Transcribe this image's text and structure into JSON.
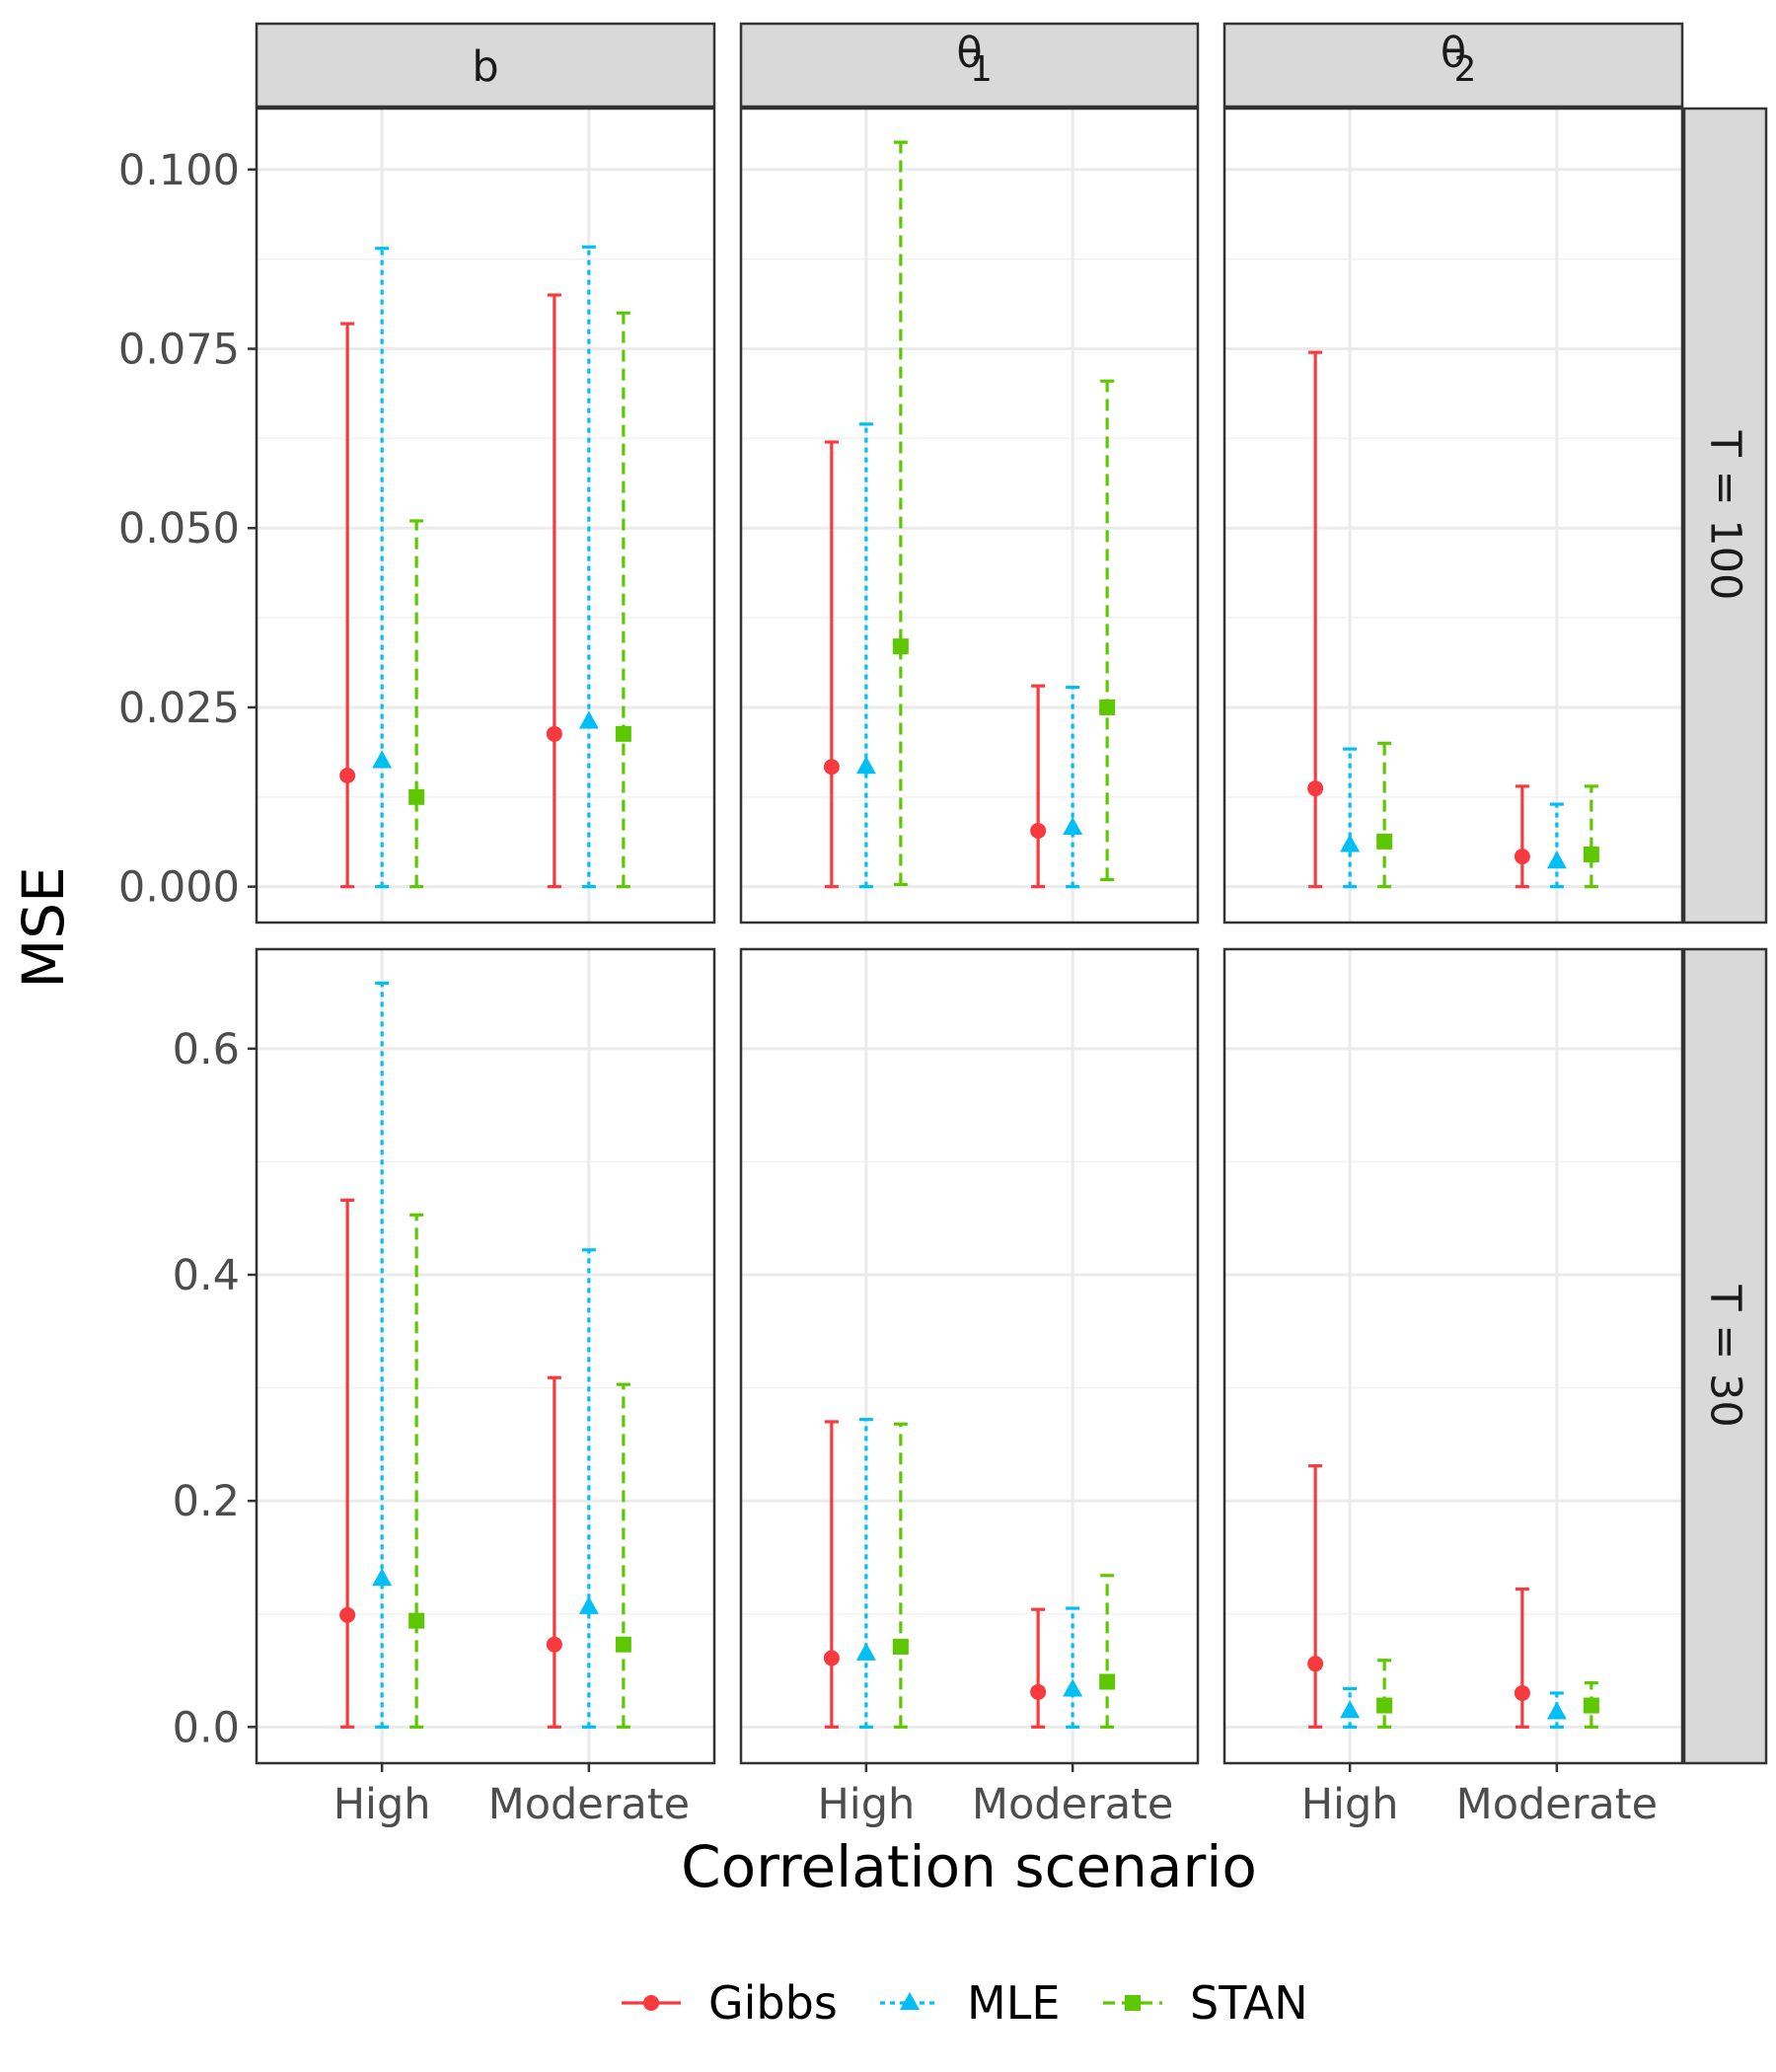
{
  "chart_data": {
    "type": "errorbar",
    "xlabel": "Correlation scenario",
    "ylabel": "MSE",
    "categories": [
      "High",
      "Moderate"
    ],
    "columns": [
      {
        "id": "b",
        "label": "b",
        "subscript": ""
      },
      {
        "id": "theta1",
        "label": "θ",
        "subscript": "1"
      },
      {
        "id": "theta2",
        "label": "θ",
        "subscript": "2"
      }
    ],
    "rows": [
      {
        "id": "T100",
        "label": "T = 100",
        "ylim": [
          -0.005,
          0.1085
        ],
        "major_ticks": [
          0.0,
          0.025,
          0.05,
          0.075,
          0.1
        ],
        "tick_labels": [
          "0.000",
          "0.025",
          "0.050",
          "0.075",
          "0.100"
        ],
        "minor_ticks": [
          0.0125,
          0.0375,
          0.0625,
          0.0875
        ]
      },
      {
        "id": "T30",
        "label": "T = 30",
        "ylim": [
          -0.032,
          0.688
        ],
        "major_ticks": [
          0.0,
          0.2,
          0.4,
          0.6
        ],
        "tick_labels": [
          "0.0",
          "0.2",
          "0.4",
          "0.6"
        ],
        "minor_ticks": [
          0.1,
          0.3,
          0.5
        ]
      }
    ],
    "series": [
      {
        "name": "Gibbs",
        "color": "#f8393e",
        "marker": "circle",
        "linestyle": "solid"
      },
      {
        "name": "MLE",
        "color": "#00bff4",
        "marker": "triangle",
        "linestyle": "dotted"
      },
      {
        "name": "STAN",
        "color": "#5dc800",
        "marker": "square",
        "linestyle": "dashed"
      }
    ],
    "panels": [
      {
        "row": "T100",
        "col": "b",
        "values": {
          "Gibbs": [
            {
              "x": "High",
              "y": 0.0155,
              "ymin": 0.0,
              "ymax": 0.0785
            },
            {
              "x": "Moderate",
              "y": 0.0213,
              "ymin": 0.0,
              "ymax": 0.0825
            }
          ],
          "MLE": [
            {
              "x": "High",
              "y": 0.0175,
              "ymin": 0.0,
              "ymax": 0.089
            },
            {
              "x": "Moderate",
              "y": 0.023,
              "ymin": 0.0,
              "ymax": 0.0892
            }
          ],
          "STAN": [
            {
              "x": "High",
              "y": 0.0125,
              "ymin": 0.0,
              "ymax": 0.051
            },
            {
              "x": "Moderate",
              "y": 0.0213,
              "ymin": 0.0,
              "ymax": 0.08
            }
          ]
        }
      },
      {
        "row": "T100",
        "col": "theta1",
        "values": {
          "Gibbs": [
            {
              "x": "High",
              "y": 0.0167,
              "ymin": 0.0,
              "ymax": 0.062
            },
            {
              "x": "Moderate",
              "y": 0.0078,
              "ymin": 0.0,
              "ymax": 0.028
            }
          ],
          "MLE": [
            {
              "x": "High",
              "y": 0.0167,
              "ymin": 0.0,
              "ymax": 0.0645
            },
            {
              "x": "Moderate",
              "y": 0.0082,
              "ymin": 0.0,
              "ymax": 0.0278
            }
          ],
          "STAN": [
            {
              "x": "High",
              "y": 0.0335,
              "ymin": 0.0003,
              "ymax": 0.1038
            },
            {
              "x": "Moderate",
              "y": 0.025,
              "ymin": 0.001,
              "ymax": 0.0705
            }
          ]
        }
      },
      {
        "row": "T100",
        "col": "theta2",
        "values": {
          "Gibbs": [
            {
              "x": "High",
              "y": 0.0137,
              "ymin": 0.0,
              "ymax": 0.0745
            },
            {
              "x": "Moderate",
              "y": 0.0042,
              "ymin": 0.0,
              "ymax": 0.014
            }
          ],
          "MLE": [
            {
              "x": "High",
              "y": 0.0058,
              "ymin": 0.0,
              "ymax": 0.0192
            },
            {
              "x": "Moderate",
              "y": 0.0035,
              "ymin": 0.0,
              "ymax": 0.0115
            }
          ],
          "STAN": [
            {
              "x": "High",
              "y": 0.0063,
              "ymin": 0.0,
              "ymax": 0.02
            },
            {
              "x": "Moderate",
              "y": 0.0045,
              "ymin": 0.0,
              "ymax": 0.014
            }
          ]
        }
      },
      {
        "row": "T30",
        "col": "b",
        "values": {
          "Gibbs": [
            {
              "x": "High",
              "y": 0.099,
              "ymin": 0.0,
              "ymax": 0.466
            },
            {
              "x": "Moderate",
              "y": 0.073,
              "ymin": 0.0,
              "ymax": 0.309
            }
          ],
          "MLE": [
            {
              "x": "High",
              "y": 0.131,
              "ymin": 0.0,
              "ymax": 0.658
            },
            {
              "x": "Moderate",
              "y": 0.106,
              "ymin": 0.0,
              "ymax": 0.422
            }
          ],
          "STAN": [
            {
              "x": "High",
              "y": 0.094,
              "ymin": 0.0,
              "ymax": 0.453
            },
            {
              "x": "Moderate",
              "y": 0.073,
              "ymin": 0.0,
              "ymax": 0.303
            }
          ]
        }
      },
      {
        "row": "T30",
        "col": "theta1",
        "values": {
          "Gibbs": [
            {
              "x": "High",
              "y": 0.061,
              "ymin": 0.0,
              "ymax": 0.27
            },
            {
              "x": "Moderate",
              "y": 0.031,
              "ymin": 0.0,
              "ymax": 0.104
            }
          ],
          "MLE": [
            {
              "x": "High",
              "y": 0.065,
              "ymin": 0.0,
              "ymax": 0.272
            },
            {
              "x": "Moderate",
              "y": 0.033,
              "ymin": 0.0,
              "ymax": 0.105
            }
          ],
          "STAN": [
            {
              "x": "High",
              "y": 0.071,
              "ymin": 0.0,
              "ymax": 0.268
            },
            {
              "x": "Moderate",
              "y": 0.04,
              "ymin": 0.0,
              "ymax": 0.134
            }
          ]
        }
      },
      {
        "row": "T30",
        "col": "theta2",
        "values": {
          "Gibbs": [
            {
              "x": "High",
              "y": 0.056,
              "ymin": 0.0,
              "ymax": 0.231
            },
            {
              "x": "Moderate",
              "y": 0.03,
              "ymin": 0.0,
              "ymax": 0.122
            }
          ],
          "MLE": [
            {
              "x": "High",
              "y": 0.014,
              "ymin": 0.0,
              "ymax": 0.034
            },
            {
              "x": "Moderate",
              "y": 0.013,
              "ymin": 0.0,
              "ymax": 0.03
            }
          ],
          "STAN": [
            {
              "x": "High",
              "y": 0.019,
              "ymin": 0.0,
              "ymax": 0.059
            },
            {
              "x": "Moderate",
              "y": 0.019,
              "ymin": 0.0,
              "ymax": 0.039
            }
          ]
        }
      }
    ],
    "legend": {
      "position": "bottom",
      "entries": [
        "Gibbs",
        "MLE",
        "STAN"
      ]
    },
    "grid": true,
    "theme": "bw"
  }
}
